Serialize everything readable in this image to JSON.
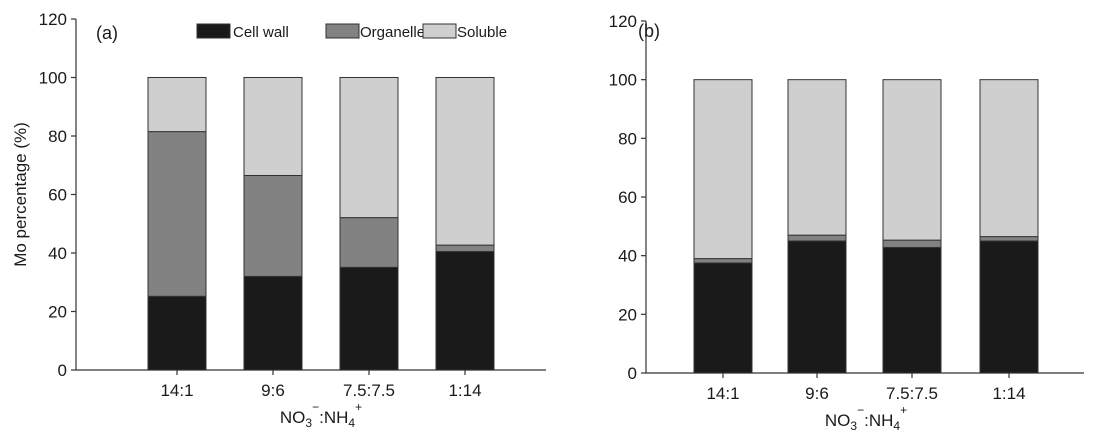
{
  "chart_data": [
    {
      "type": "bar",
      "stacked": true,
      "panel_label": "(a)",
      "categories": [
        "14:1",
        "9:6",
        "7.5:7.5",
        "1:14"
      ],
      "series": [
        {
          "name": "Cell wall",
          "color": "#1a1a1a",
          "values": [
            25.2,
            32.0,
            35.1,
            40.5
          ]
        },
        {
          "name": "Organelle",
          "color": "#828282",
          "values": [
            56.3,
            34.5,
            17.0,
            2.2
          ]
        },
        {
          "name": "Soluble",
          "color": "#cfcfcf",
          "values": [
            18.5,
            33.5,
            47.9,
            57.3
          ]
        }
      ],
      "ylabel": "Mo percentage (%)",
      "xlabel_parts": {
        "a": "NO",
        "a_sub": "3",
        "a_sup": "−",
        "sep": ":NH",
        "b_sub": "4",
        "b_sup": "+"
      },
      "ylim": [
        0,
        120
      ],
      "yticks": [
        "0",
        "20",
        "40",
        "60",
        "80",
        "100",
        "120"
      ],
      "legend": "top-right",
      "grid": false
    },
    {
      "type": "bar",
      "stacked": true,
      "panel_label": "(b)",
      "categories": [
        "14:1",
        "9:6",
        "7.5:7.5",
        "1:14"
      ],
      "series": [
        {
          "name": "Cell wall",
          "color": "#1a1a1a",
          "values": [
            37.5,
            45.0,
            42.8,
            45.0
          ]
        },
        {
          "name": "Organelle",
          "color": "#828282",
          "values": [
            1.5,
            2.0,
            2.5,
            1.5
          ]
        },
        {
          "name": "Soluble",
          "color": "#cfcfcf",
          "values": [
            61.0,
            53.0,
            54.7,
            53.5
          ]
        }
      ],
      "ylabel": "",
      "xlabel_parts": {
        "a": "NO",
        "a_sub": "3",
        "a_sup": "−",
        "sep": ":NH",
        "b_sub": "4",
        "b_sup": "+"
      },
      "ylim": [
        0,
        120
      ],
      "yticks": [
        "0",
        "20",
        "40",
        "60",
        "80",
        "100",
        "120"
      ],
      "legend": "none",
      "grid": false
    }
  ]
}
